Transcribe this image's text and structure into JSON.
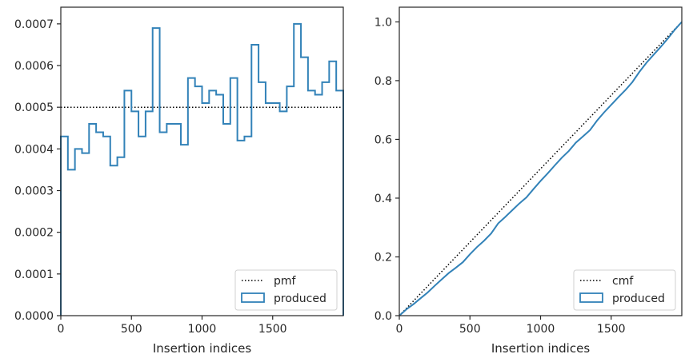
{
  "charts": [
    {
      "type": "step-histogram",
      "xlabel": "Insertion indices",
      "ylabel": "",
      "xlim": [
        0,
        2000
      ],
      "ylim": [
        0,
        0.00074
      ],
      "xticks": [
        {
          "value": 0,
          "label": "0"
        },
        {
          "value": 500,
          "label": "500"
        },
        {
          "value": 1000,
          "label": "1000"
        },
        {
          "value": 1500,
          "label": "1500"
        }
      ],
      "yticks": [
        {
          "value": 0,
          "label": "0.0000"
        },
        {
          "value": 0.0001,
          "label": "0.0001"
        },
        {
          "value": 0.0002,
          "label": "0.0002"
        },
        {
          "value": 0.0003,
          "label": "0.0003"
        },
        {
          "value": 0.0004,
          "label": "0.0004"
        },
        {
          "value": 0.0005,
          "label": "0.0005"
        },
        {
          "value": 0.0006,
          "label": "0.0006"
        },
        {
          "value": 0.0007,
          "label": "0.0007"
        }
      ],
      "reference": {
        "name": "pmf",
        "y": 0.0005,
        "style": "dotted",
        "color": "#000000"
      },
      "series": {
        "name": "produced",
        "color": "#3282b8",
        "bin_edges": [
          0,
          50,
          100,
          150,
          200,
          250,
          300,
          350,
          400,
          450,
          500,
          550,
          600,
          650,
          700,
          750,
          800,
          850,
          900,
          950,
          1000,
          1050,
          1100,
          1150,
          1200,
          1250,
          1300,
          1350,
          1400,
          1450,
          1500,
          1550,
          1600,
          1650,
          1700,
          1750,
          1800,
          1850,
          1900,
          1950,
          2000
        ],
        "values": [
          0.00043,
          0.00035,
          0.0004,
          0.00039,
          0.00046,
          0.00044,
          0.00043,
          0.00036,
          0.00038,
          0.00054,
          0.00049,
          0.00043,
          0.00049,
          0.00069,
          0.00044,
          0.00046,
          0.00046,
          0.00041,
          0.00057,
          0.00055,
          0.00051,
          0.00054,
          0.00053,
          0.00046,
          0.00057,
          0.00042,
          0.00043,
          0.00065,
          0.00056,
          0.00051,
          0.00051,
          0.00049,
          0.00055,
          0.0007,
          0.00062,
          0.00054,
          0.00053,
          0.00056,
          0.00061,
          0.00054
        ]
      },
      "legend": {
        "location": "lower-right",
        "entries": [
          "pmf",
          "produced"
        ]
      }
    },
    {
      "type": "step-cumulative",
      "xlabel": "Insertion indices",
      "ylabel": "",
      "xlim": [
        0,
        2000
      ],
      "ylim": [
        0,
        1.05
      ],
      "xticks": [
        {
          "value": 0,
          "label": "0"
        },
        {
          "value": 500,
          "label": "500"
        },
        {
          "value": 1000,
          "label": "1000"
        },
        {
          "value": 1500,
          "label": "1500"
        }
      ],
      "yticks": [
        {
          "value": 0,
          "label": "0.0"
        },
        {
          "value": 0.2,
          "label": "0.2"
        },
        {
          "value": 0.4,
          "label": "0.4"
        },
        {
          "value": 0.6,
          "label": "0.6"
        },
        {
          "value": 0.8,
          "label": "0.8"
        },
        {
          "value": 1.0,
          "label": "1.0"
        }
      ],
      "reference": {
        "name": "cmf",
        "from": [
          0,
          0
        ],
        "to": [
          2000,
          1.0
        ],
        "style": "dotted",
        "color": "#000000"
      },
      "series": {
        "name": "produced",
        "color": "#3282b8",
        "x": [
          0,
          50,
          100,
          150,
          200,
          250,
          300,
          350,
          400,
          450,
          500,
          550,
          600,
          650,
          700,
          750,
          800,
          850,
          900,
          950,
          1000,
          1050,
          1100,
          1150,
          1200,
          1250,
          1300,
          1350,
          1400,
          1450,
          1500,
          1550,
          1600,
          1650,
          1700,
          1750,
          1800,
          1850,
          1900,
          1950,
          2000
        ],
        "y": [
          0,
          0.0215,
          0.039,
          0.059,
          0.0785,
          0.1015,
          0.1235,
          0.145,
          0.163,
          0.182,
          0.209,
          0.2335,
          0.255,
          0.2795,
          0.314,
          0.336,
          0.359,
          0.382,
          0.4025,
          0.431,
          0.4585,
          0.484,
          0.511,
          0.5375,
          0.5605,
          0.589,
          0.61,
          0.6315,
          0.664,
          0.692,
          0.7175,
          0.743,
          0.7675,
          0.795,
          0.83,
          0.861,
          0.888,
          0.9145,
          0.9425,
          0.973,
          1.0
        ]
      },
      "legend": {
        "location": "lower-right",
        "entries": [
          "cmf",
          "produced"
        ]
      }
    }
  ]
}
